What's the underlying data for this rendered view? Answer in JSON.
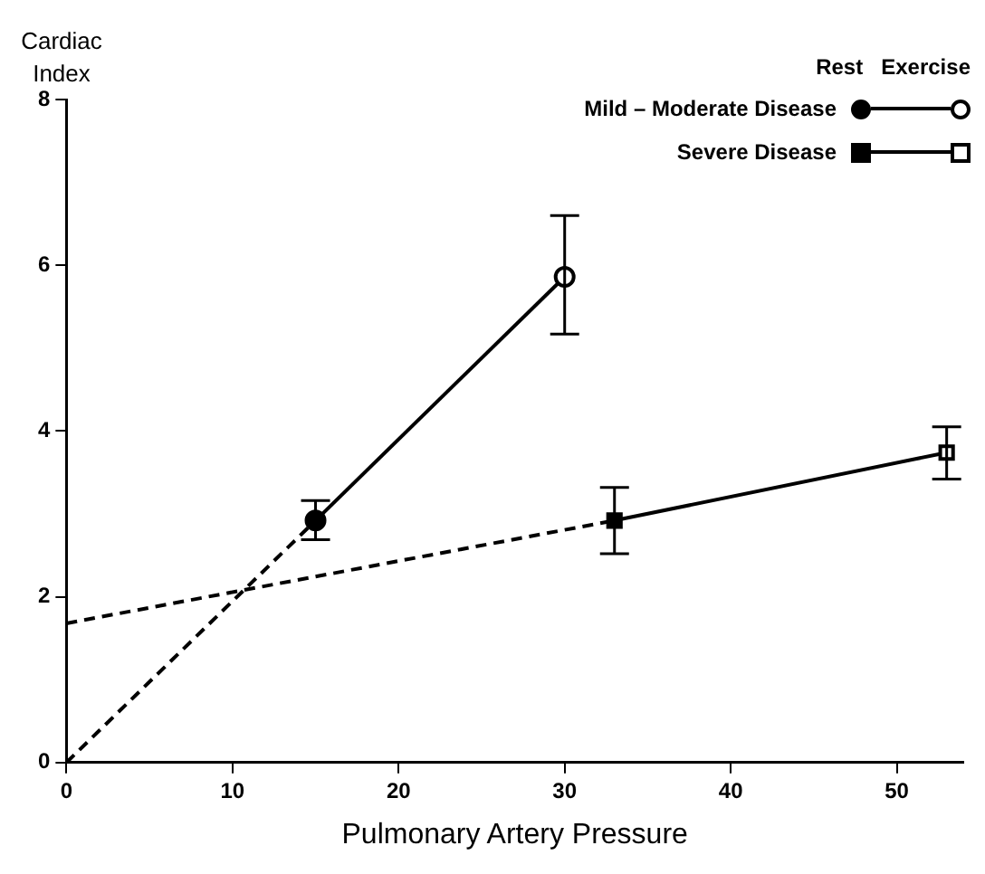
{
  "chart_data": {
    "type": "line",
    "xlabel": "Pulmonary Artery Pressure",
    "ylabel": "Cardiac Index",
    "xlim": [
      0,
      54
    ],
    "xticks": [
      0,
      10,
      20,
      30,
      40,
      50
    ],
    "ylim": [
      0,
      8
    ],
    "yticks": [
      0,
      2,
      4,
      6,
      8
    ],
    "legend": "top right",
    "annotations": [
      "Rest",
      "Exercise"
    ],
    "series": [
      {
        "name": "Mild – Moderate Disease",
        "color": "#000000",
        "marker": "circle",
        "line_style": "solid",
        "x": [
          15,
          30
        ],
        "values": [
          2.92,
          5.86
        ],
        "errors": [
          [
            2.69,
            3.16
          ],
          [
            5.17,
            6.6
          ]
        ]
      },
      {
        "name": "Severe Disease",
        "color": "#000000",
        "marker": "square",
        "line_style": "solid",
        "x": [
          33,
          53
        ],
        "values": [
          2.92,
          3.74
        ],
        "errors": [
          [
            2.52,
            3.32
          ],
          [
            3.42,
            4.05
          ]
        ]
      },
      {
        "type": "line",
        "color": "#000000",
        "marker": "none",
        "line_style": "dashed",
        "x": [
          0,
          15
        ],
        "values": [
          0,
          2.92
        ]
      },
      {
        "type": "line",
        "color": "#000000",
        "marker": "none",
        "line_style": "dashed",
        "x": [
          0,
          33
        ],
        "values": [
          1.68,
          2.92
        ]
      }
    ]
  }
}
